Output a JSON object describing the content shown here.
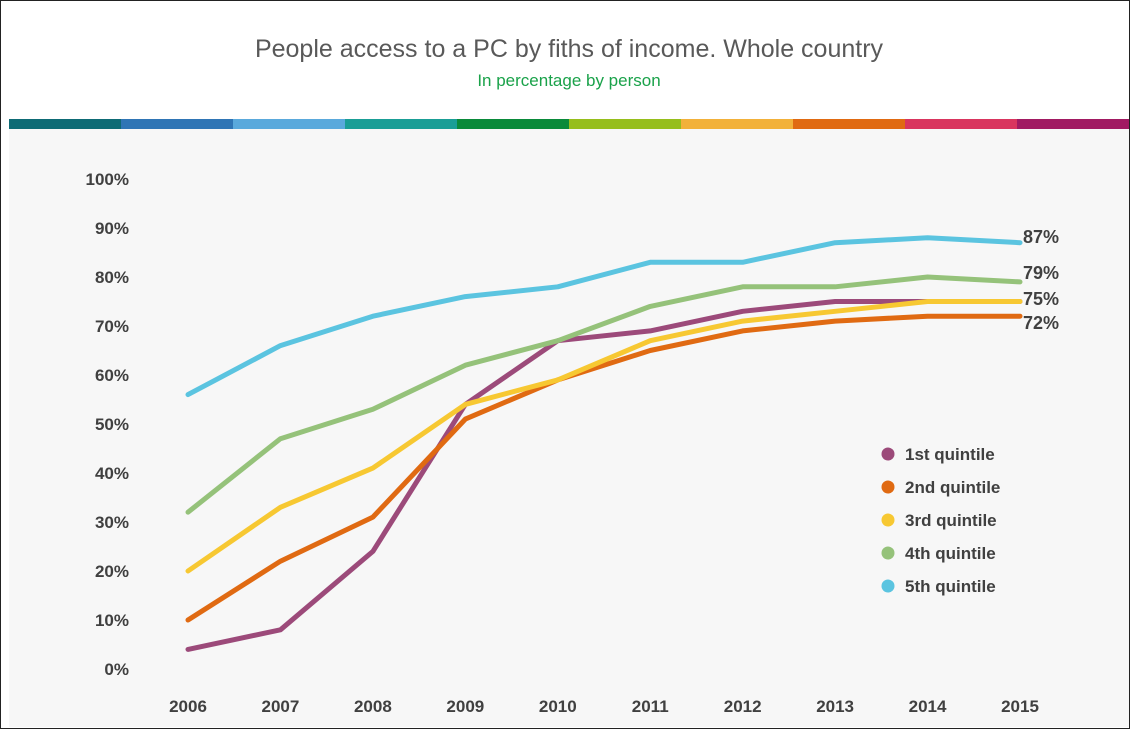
{
  "header": {
    "title": "People access to a PC by fiths of income. Whole country",
    "subtitle": "In percentage by person"
  },
  "colors": {
    "stripe": [
      "#0e6b75",
      "#2f75b5",
      "#5aa9dc",
      "#1a9e96",
      "#0a8a3a",
      "#96be1c",
      "#f2b13a",
      "#e06a12",
      "#d9355e",
      "#a11a62"
    ]
  },
  "chart_data": {
    "type": "line",
    "title": "People access to a PC by fiths of income. Whole country",
    "subtitle": "In percentage by person",
    "xlabel": "",
    "ylabel": "",
    "x": [
      "2006",
      "2007",
      "2008",
      "2009",
      "2010",
      "2011",
      "2012",
      "2013",
      "2014",
      "2015"
    ],
    "ylim": [
      0,
      100
    ],
    "yticks": [
      "0%",
      "10%",
      "20%",
      "30%",
      "40%",
      "50%",
      "60%",
      "70%",
      "80%",
      "90%",
      "100%"
    ],
    "grid": false,
    "legend_position": "bottom-right",
    "series": [
      {
        "name": "1st quintile",
        "color": "#9c4a7a",
        "values": [
          4,
          8,
          24,
          54,
          67,
          69,
          73,
          75,
          75,
          75
        ],
        "end_label": "75%"
      },
      {
        "name": "2nd quintile",
        "color": "#e06a12",
        "values": [
          10,
          22,
          31,
          51,
          59,
          65,
          69,
          71,
          72,
          72
        ],
        "end_label": "72%"
      },
      {
        "name": "3rd quintile",
        "color": "#f7c832",
        "values": [
          20,
          33,
          41,
          54,
          59,
          67,
          71,
          73,
          75,
          75
        ],
        "end_label": ""
      },
      {
        "name": "4th quintile",
        "color": "#95c27a",
        "values": [
          32,
          47,
          53,
          62,
          67,
          74,
          78,
          78,
          80,
          79
        ],
        "end_label": "79%"
      },
      {
        "name": "5th quintile",
        "color": "#5bc4e0",
        "values": [
          56,
          66,
          72,
          76,
          78,
          83,
          83,
          87,
          88,
          87
        ],
        "end_label": "87%"
      }
    ]
  }
}
